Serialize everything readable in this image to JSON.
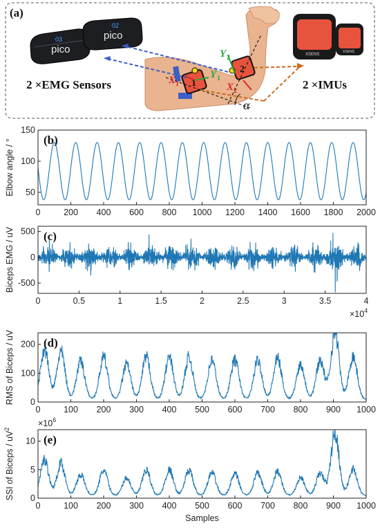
{
  "panel_a": {
    "label": "(a)",
    "emg_caption": "2 ×EMG Sensors",
    "imu_caption": "2 ×IMUs",
    "sensor_labels": [
      "03",
      "02"
    ],
    "sensor_brand": "pico",
    "imu_brand": "XSENS",
    "markers": {
      "x1": "X",
      "x1_sub": "1",
      "y1": "Y",
      "y1_sub": "1",
      "x2": "X",
      "x2_sub": "2",
      "y2": "Y",
      "y2_sub": "2",
      "alpha": "α",
      "box1": "1",
      "box2": "2"
    },
    "colors": {
      "emg_arrow": "#3b5fc8",
      "imu_arrow": "#cc6a1c",
      "x_axis": "#d42b2b",
      "y_axis": "#2aa63a",
      "sensor_body": "#e8533d",
      "skin": "#e9b48f"
    }
  },
  "chart_data": [
    {
      "id": "b",
      "panel_label": "(b)",
      "type": "line",
      "ylabel": "Elbow angle / °",
      "xlim": [
        0,
        2000
      ],
      "ylim": [
        30,
        150
      ],
      "xticks": [
        0,
        200,
        400,
        600,
        800,
        1000,
        1200,
        1400,
        1600,
        1800,
        2000
      ],
      "xtick_labels": [
        "0",
        "200",
        "400",
        "600",
        "800",
        "1000",
        "1200",
        "1400",
        "1600",
        "1800",
        "2000"
      ],
      "yticks": [
        50,
        100,
        150
      ],
      "ytick_labels": [
        "50",
        "100",
        "150"
      ],
      "signal": {
        "kind": "sinusoid",
        "period": 130,
        "phase_peak": 100,
        "min": 38,
        "max": 130,
        "n_points": 2000
      },
      "color": "#1f77b4"
    },
    {
      "id": "c",
      "panel_label": "(c)",
      "type": "line",
      "ylabel": "Biceps EMG / uV",
      "xlim": [
        0,
        40000
      ],
      "ylim": [
        -700,
        600
      ],
      "xticks": [
        0,
        5000,
        10000,
        15000,
        20000,
        25000,
        30000,
        35000,
        40000
      ],
      "xtick_labels": [
        "0",
        "0.5",
        "1",
        "1.5",
        "2",
        "2.5",
        "3",
        "3.5",
        "4"
      ],
      "x_multiplier": "×10",
      "x_multiplier_exp": "4",
      "yticks": [
        -500,
        0,
        500
      ],
      "ytick_labels": [
        "-500",
        "0",
        "500"
      ],
      "signal": {
        "kind": "bursts",
        "n_bursts": 16,
        "amp_typical": 300,
        "amp_max": 600
      },
      "color": "#1f77b4"
    },
    {
      "id": "d",
      "panel_label": "(d)",
      "type": "line",
      "ylabel": "RMS of Biceps / uV",
      "xlim": [
        0,
        1000
      ],
      "ylim": [
        0,
        240
      ],
      "xticks": [
        0,
        100,
        200,
        300,
        400,
        500,
        600,
        700,
        800,
        900,
        1000
      ],
      "xtick_labels": [
        "0",
        "100",
        "200",
        "300",
        "400",
        "500",
        "600",
        "700",
        "800",
        "900",
        "1000"
      ],
      "yticks": [
        0,
        100,
        200
      ],
      "ytick_labels": [
        "0",
        "100",
        "200"
      ],
      "peaks": [
        [
          20,
          180
        ],
        [
          70,
          170
        ],
        [
          130,
          135
        ],
        [
          200,
          150
        ],
        [
          270,
          125
        ],
        [
          330,
          150
        ],
        [
          400,
          150
        ],
        [
          460,
          150
        ],
        [
          530,
          140
        ],
        [
          600,
          140
        ],
        [
          670,
          140
        ],
        [
          730,
          145
        ],
        [
          800,
          125
        ],
        [
          860,
          140
        ],
        [
          905,
          240
        ],
        [
          960,
          155
        ]
      ],
      "color": "#1f77b4"
    },
    {
      "id": "e",
      "panel_label": "(e)",
      "type": "line",
      "ylabel": "SSI of Biceps / uV",
      "ylabel_sup": "2",
      "xlabel": "Samples",
      "xlim": [
        0,
        1000
      ],
      "ylim": [
        0,
        12000000
      ],
      "y_multiplier": "×10",
      "y_multiplier_exp": "6",
      "xticks": [
        0,
        100,
        200,
        300,
        400,
        500,
        600,
        700,
        800,
        900,
        1000
      ],
      "xtick_labels": [
        "0",
        "100",
        "200",
        "300",
        "400",
        "500",
        "600",
        "700",
        "800",
        "900",
        "1000"
      ],
      "yticks": [
        0,
        5000000,
        10000000
      ],
      "ytick_labels": [
        "0",
        "5",
        "10"
      ],
      "peaks": [
        [
          20,
          6500000
        ],
        [
          70,
          5800000
        ],
        [
          130,
          3800000
        ],
        [
          200,
          4500000
        ],
        [
          270,
          3200000
        ],
        [
          330,
          4600000
        ],
        [
          400,
          4600000
        ],
        [
          460,
          4500000
        ],
        [
          530,
          4100000
        ],
        [
          600,
          3900000
        ],
        [
          670,
          4000000
        ],
        [
          730,
          4300000
        ],
        [
          800,
          3200000
        ],
        [
          860,
          4000000
        ],
        [
          905,
          11500000
        ],
        [
          960,
          4800000
        ]
      ],
      "color": "#1f77b4"
    }
  ]
}
